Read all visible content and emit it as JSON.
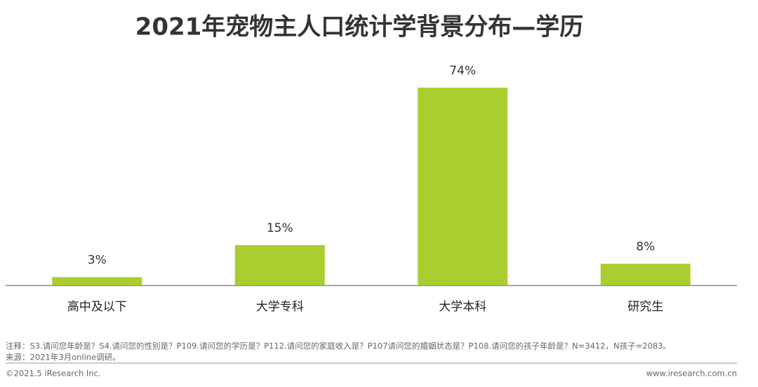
{
  "chart_data": {
    "type": "bar",
    "title": "2021年宠物主人口统计学背景分布—学历",
    "categories": [
      "高中及以下",
      "大学专科",
      "大学本科",
      "研究生"
    ],
    "values": [
      3,
      15,
      74,
      8
    ],
    "value_labels": [
      "3%",
      "15%",
      "74%",
      "8%"
    ],
    "color": "#aacd30"
  },
  "footnotes": {
    "note": "注释：S3.请问您年龄是？S4.请问您的性别是？P109.请问您的学历是？P112.请问您的家庭收入是？P107请问您的婚姻状态是？P108.请问您的孩子年龄是？N=3412，N孩子=2083。",
    "source": "来源：2021年3月online调研。",
    "copyright": "©2021.5 iResearch Inc.",
    "website": "www.iresearch.com.cn"
  }
}
